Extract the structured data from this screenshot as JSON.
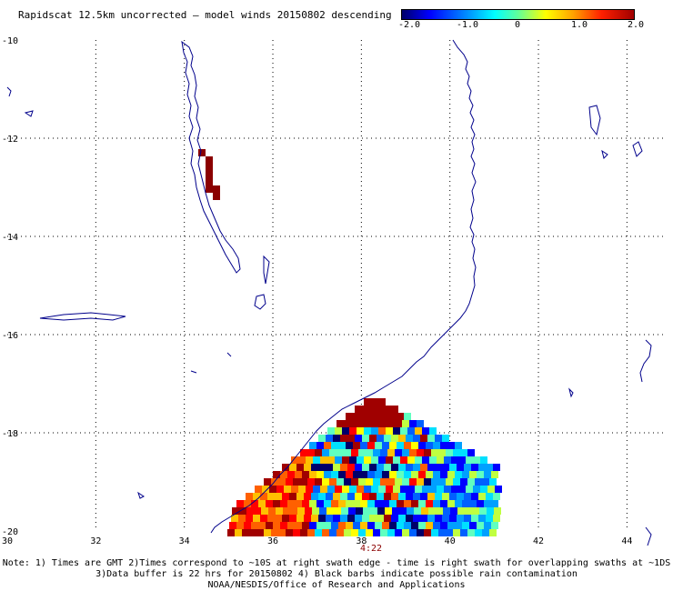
{
  "title": "Rapidscat 12.5km uncorrected — model winds 20150802 descending",
  "colorbar": {
    "labels": [
      "-2.0",
      "-1.0",
      "0",
      "1.0",
      "2.0"
    ],
    "min": -2.0,
    "max": 2.0
  },
  "map": {
    "lon_range": [
      30,
      45
    ],
    "lat_range": [
      -20,
      -10
    ],
    "lon_ticks": [
      "30",
      "32",
      "34",
      "36",
      "38",
      "40",
      "42",
      "44"
    ],
    "lat_ticks": [
      "-10",
      "-12",
      "-14",
      "-16",
      "-18",
      "-20"
    ],
    "grid": "dotted",
    "colors": {
      "coast": "#00008b",
      "dark_red": "#8b0000"
    }
  },
  "swath_time": "4:22",
  "notes": [
    "Note: 1) Times are GMT 2)Times correspond to ~10S at right swath edge - time is right swath for overlapping swaths at ~1DS",
    "3)Data buffer is 22 hrs for 20150802 4) Black barbs indicate possible rain contamination",
    "NOAA/NESDIS/Office of Research and Applications"
  ]
}
